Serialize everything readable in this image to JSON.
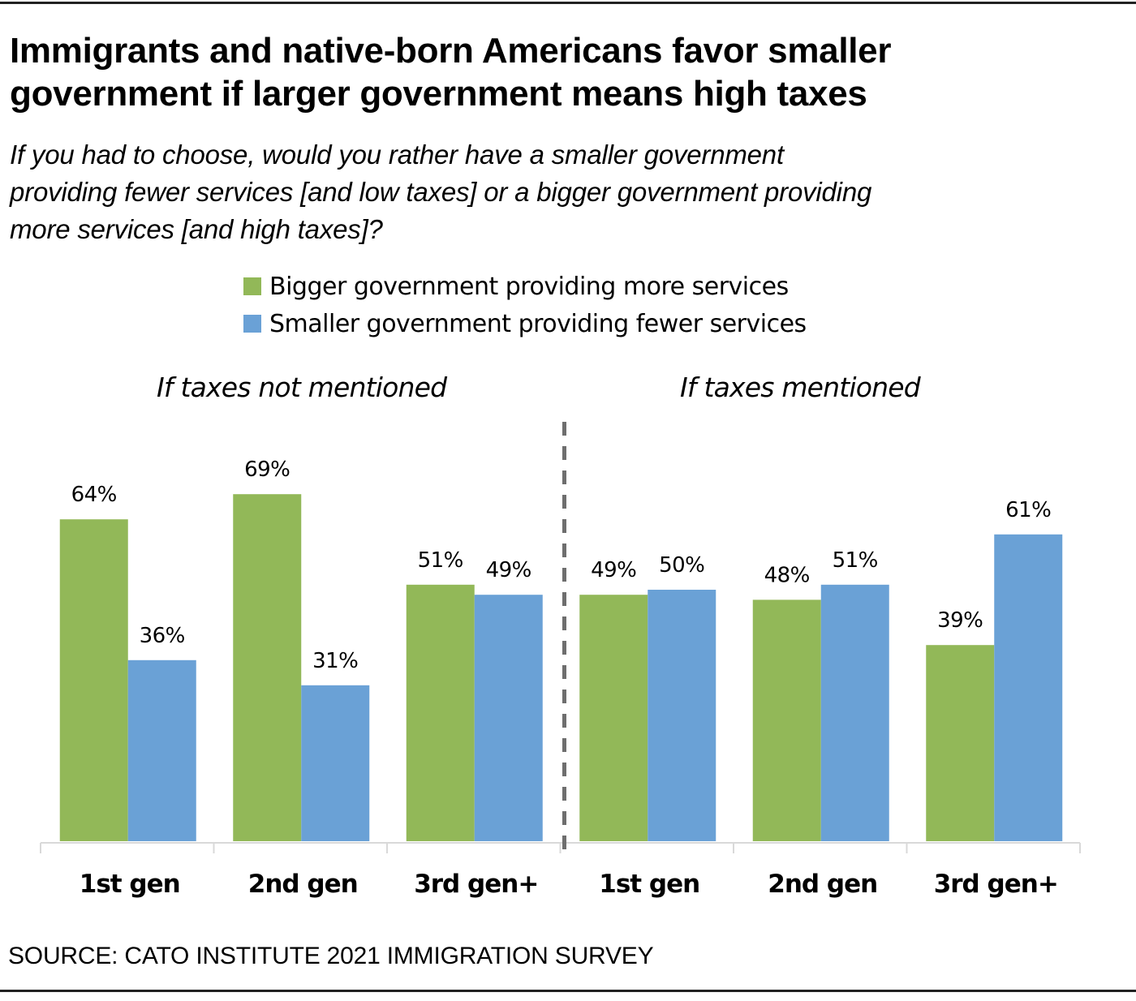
{
  "chart_data": {
    "type": "bar",
    "title": "Immigrants and native-born Americans favor smaller government if larger government means high taxes",
    "subtitle": "If you had to choose, would you rather have a smaller government providing fewer services [and low taxes] or a bigger government providing more services [and high taxes]?",
    "xlabel": "",
    "ylabel": "",
    "ylim": [
      0,
      100
    ],
    "grid": false,
    "legend_position": "top-center",
    "value_format": "percent",
    "legend": [
      {
        "name": "Bigger government providing more services",
        "color": "#92b858"
      },
      {
        "name": "Smaller government providing fewer services",
        "color": "#6aa1d6"
      }
    ],
    "panels": [
      {
        "label": "If taxes not mentioned",
        "categories": [
          "1st gen",
          "2nd gen",
          "3rd gen+"
        ],
        "series": [
          {
            "name": "Bigger government providing more services",
            "values": [
              64,
              69,
              51
            ]
          },
          {
            "name": "Smaller government providing fewer services",
            "values": [
              36,
              31,
              49
            ]
          }
        ]
      },
      {
        "label": "If taxes mentioned",
        "categories": [
          "1st gen",
          "2nd gen",
          "3rd gen+"
        ],
        "series": [
          {
            "name": "Bigger government providing more services",
            "values": [
              49,
              48,
              39
            ]
          },
          {
            "name": "Smaller government providing fewer services",
            "values": [
              50,
              51,
              61
            ]
          }
        ]
      }
    ],
    "source": "SOURCE: CATO INSTITUTE 2021 IMMIGRATION SURVEY"
  },
  "header": {
    "title_line1": "Immigrants and native-born Americans favor smaller",
    "title_line2": "government if larger government means high taxes",
    "subtitle_line1": "If you had to choose, would you rather have a smaller government",
    "subtitle_line2": "providing fewer services [and low taxes] or a bigger government providing",
    "subtitle_line3": "more services [and high taxes]?"
  },
  "colors": {
    "bigger": "#92b858",
    "smaller": "#6aa1d6",
    "divider": "#6e6e6e",
    "axis": "#d9d9d9"
  }
}
